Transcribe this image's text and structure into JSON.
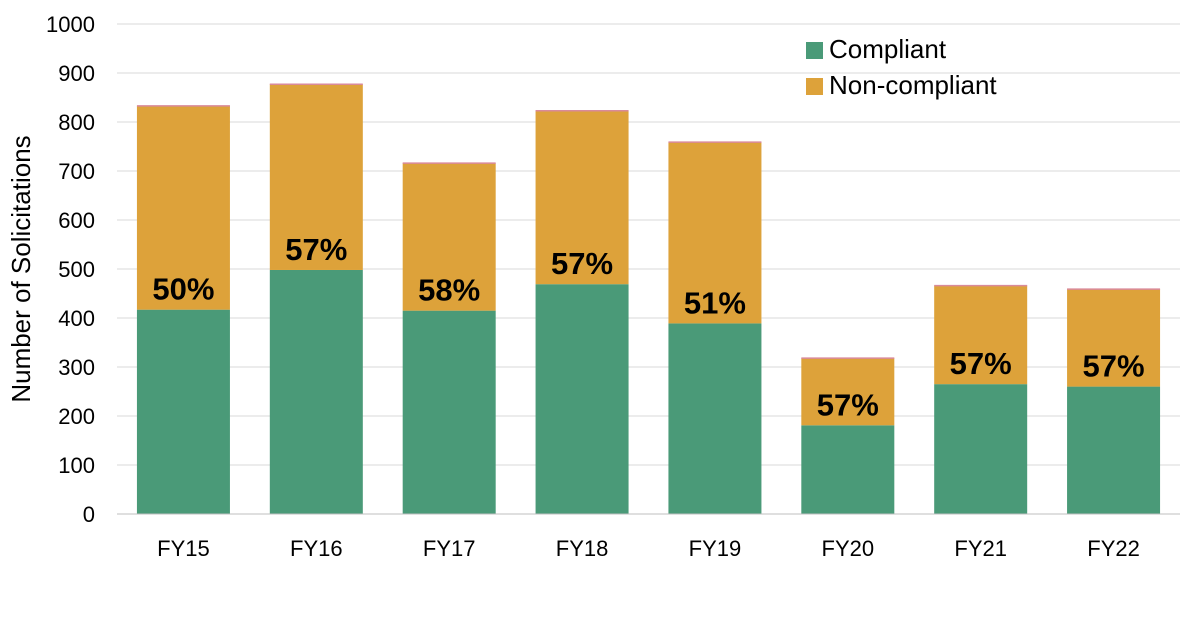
{
  "chart_data": {
    "type": "bar",
    "stacked": true,
    "categories": [
      "FY15",
      "FY16",
      "FY17",
      "FY18",
      "FY19",
      "FY20",
      "FY21",
      "FY22"
    ],
    "series": [
      {
        "name": "Compliant",
        "color": "#4a9a78",
        "values": [
          417,
          498,
          415,
          469,
          389,
          181,
          265,
          260
        ]
      },
      {
        "name": "Non-compliant",
        "color": "#dda23a",
        "values": [
          416,
          379,
          301,
          354,
          370,
          137,
          201,
          199
        ]
      }
    ],
    "data_labels": [
      "50%",
      "57%",
      "58%",
      "57%",
      "51%",
      "57%",
      "57%",
      "57%"
    ],
    "title": "",
    "xlabel": "",
    "ylabel": "Number of Solicitations",
    "ylim": [
      0,
      1000
    ],
    "yticks": [
      0,
      100,
      200,
      300,
      400,
      500,
      600,
      700,
      800,
      900,
      1000
    ],
    "grid": true,
    "legend": "top-right",
    "top_edge_color": "#d98a9a"
  }
}
